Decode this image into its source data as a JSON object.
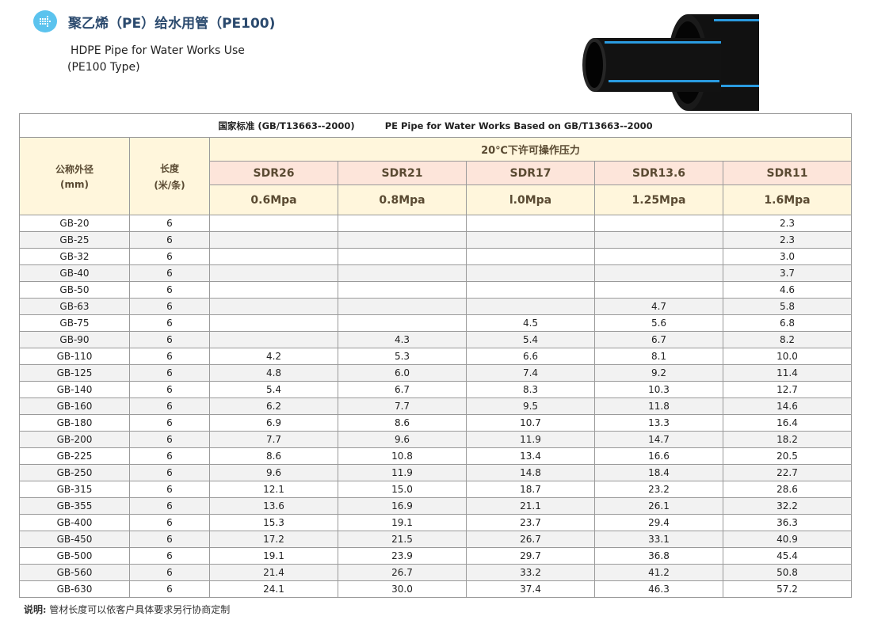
{
  "header": {
    "logo_icon": "grid-arrow-icon",
    "title": "聚乙烯（PE）给水用管（PE100)",
    "subtitle_en": "HDPE Pipe for Water Works Use",
    "subtitle_type": "(PE100 Type)",
    "accent_color": "#5bc3ee"
  },
  "table": {
    "standard_cn": "国家标准 (GB/T13663--2000)",
    "standard_en": "PE Pipe for Water Works Based on GB/T13663--2000",
    "col_diameter": "公称外径",
    "col_diameter_unit": "(mm)",
    "col_length": "长度",
    "col_length_unit": "(米/条)",
    "pressure_group": "20℃下许可操作压力",
    "sdr": [
      "SDR26",
      "SDR21",
      "SDR17",
      "SDR13.6",
      "SDR11"
    ],
    "mpa": [
      "0.6Mpa",
      "0.8Mpa",
      "l.0Mpa",
      "1.25Mpa",
      "1.6Mpa"
    ],
    "rows": [
      [
        "GB-20",
        "6",
        "",
        "",
        "",
        "",
        "2.3"
      ],
      [
        "GB-25",
        "6",
        "",
        "",
        "",
        "",
        "2.3"
      ],
      [
        "GB-32",
        "6",
        "",
        "",
        "",
        "",
        "3.0"
      ],
      [
        "GB-40",
        "6",
        "",
        "",
        "",
        "",
        "3.7"
      ],
      [
        "GB-50",
        "6",
        "",
        "",
        "",
        "",
        "4.6"
      ],
      [
        "GB-63",
        "6",
        "",
        "",
        "",
        "4.7",
        "5.8"
      ],
      [
        "GB-75",
        "6",
        "",
        "",
        "4.5",
        "5.6",
        "6.8"
      ],
      [
        "GB-90",
        "6",
        "",
        "4.3",
        "5.4",
        "6.7",
        "8.2"
      ],
      [
        "GB-110",
        "6",
        "4.2",
        "5.3",
        "6.6",
        "8.1",
        "10.0"
      ],
      [
        "GB-125",
        "6",
        "4.8",
        "6.0",
        "7.4",
        "9.2",
        "11.4"
      ],
      [
        "GB-140",
        "6",
        "5.4",
        "6.7",
        "8.3",
        "10.3",
        "12.7"
      ],
      [
        "GB-160",
        "6",
        "6.2",
        "7.7",
        "9.5",
        "11.8",
        "14.6"
      ],
      [
        "GB-180",
        "6",
        "6.9",
        "8.6",
        "10.7",
        "13.3",
        "16.4"
      ],
      [
        "GB-200",
        "6",
        "7.7",
        "9.6",
        "11.9",
        "14.7",
        "18.2"
      ],
      [
        "GB-225",
        "6",
        "8.6",
        "10.8",
        "13.4",
        "16.6",
        "20.5"
      ],
      [
        "GB-250",
        "6",
        "9.6",
        "11.9",
        "14.8",
        "18.4",
        "22.7"
      ],
      [
        "GB-315",
        "6",
        "12.1",
        "15.0",
        "18.7",
        "23.2",
        "28.6"
      ],
      [
        "GB-355",
        "6",
        "13.6",
        "16.9",
        "21.1",
        "26.1",
        "32.2"
      ],
      [
        "GB-400",
        "6",
        "15.3",
        "19.1",
        "23.7",
        "29.4",
        "36.3"
      ],
      [
        "GB-450",
        "6",
        "17.2",
        "21.5",
        "26.7",
        "33.1",
        "40.9"
      ],
      [
        "GB-500",
        "6",
        "19.1",
        "23.9",
        "29.7",
        "36.8",
        "45.4"
      ],
      [
        "GB-560",
        "6",
        "21.4",
        "26.7",
        "33.2",
        "41.2",
        "50.8"
      ],
      [
        "GB-630",
        "6",
        "24.1",
        "30.0",
        "37.4",
        "46.3",
        "57.2"
      ]
    ]
  },
  "note": {
    "label": "说明:",
    "text": "管材长度可以依客户具体要求另行协商定制"
  }
}
